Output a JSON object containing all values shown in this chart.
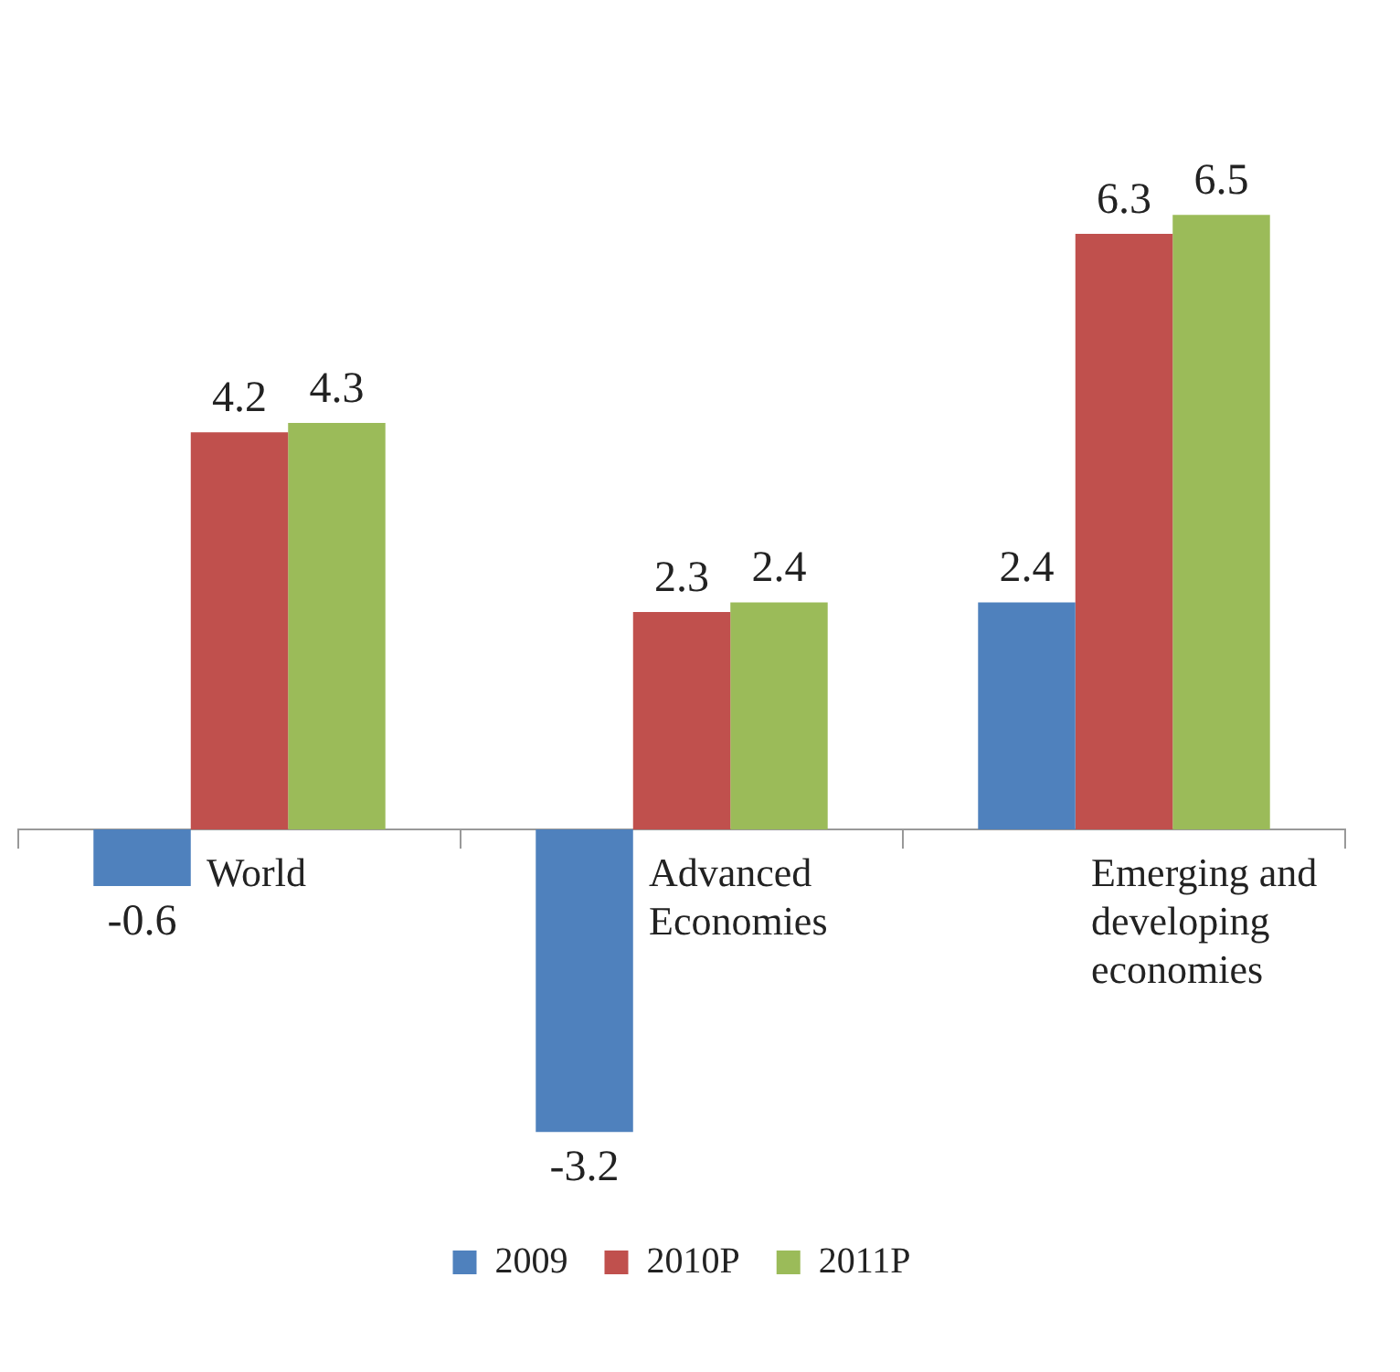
{
  "chart_data": {
    "type": "bar",
    "categories": [
      "World",
      "Advanced Economies",
      "Emerging and developing economies"
    ],
    "series": [
      {
        "name": "2009",
        "color": "#4f81bd",
        "values": [
          -0.6,
          -3.2,
          2.4
        ]
      },
      {
        "name": "2010P",
        "color": "#c0504d",
        "values": [
          4.2,
          2.3,
          6.3
        ]
      },
      {
        "name": "2011P",
        "color": "#9bbb59",
        "values": [
          4.3,
          2.4,
          6.5
        ]
      }
    ],
    "data_labels": true,
    "grid": false,
    "legend": "bottom"
  }
}
